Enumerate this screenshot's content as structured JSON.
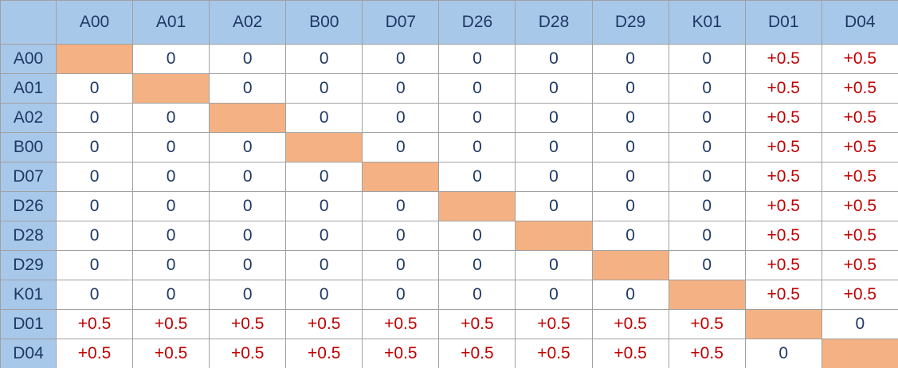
{
  "table": {
    "columns": [
      "A00",
      "A01",
      "A02",
      "B00",
      "D07",
      "D26",
      "D28",
      "D29",
      "K01",
      "D01",
      "D04"
    ],
    "rows": [
      {
        "label": "A00",
        "cells": [
          null,
          "0",
          "0",
          "0",
          "0",
          "0",
          "0",
          "0",
          "0",
          "+0.5",
          "+0.5"
        ]
      },
      {
        "label": "A01",
        "cells": [
          "0",
          null,
          "0",
          "0",
          "0",
          "0",
          "0",
          "0",
          "0",
          "+0.5",
          "+0.5"
        ]
      },
      {
        "label": "A02",
        "cells": [
          "0",
          "0",
          null,
          "0",
          "0",
          "0",
          "0",
          "0",
          "0",
          "+0.5",
          "+0.5"
        ]
      },
      {
        "label": "B00",
        "cells": [
          "0",
          "0",
          "0",
          null,
          "0",
          "0",
          "0",
          "0",
          "0",
          "+0.5",
          "+0.5"
        ]
      },
      {
        "label": "D07",
        "cells": [
          "0",
          "0",
          "0",
          "0",
          null,
          "0",
          "0",
          "0",
          "0",
          "+0.5",
          "+0.5"
        ]
      },
      {
        "label": "D26",
        "cells": [
          "0",
          "0",
          "0",
          "0",
          "0",
          null,
          "0",
          "0",
          "0",
          "+0.5",
          "+0.5"
        ]
      },
      {
        "label": "D28",
        "cells": [
          "0",
          "0",
          "0",
          "0",
          "0",
          "0",
          null,
          "0",
          "0",
          "+0.5",
          "+0.5"
        ]
      },
      {
        "label": "D29",
        "cells": [
          "0",
          "0",
          "0",
          "0",
          "0",
          "0",
          "0",
          null,
          "0",
          "+0.5",
          "+0.5"
        ]
      },
      {
        "label": "K01",
        "cells": [
          "0",
          "0",
          "0",
          "0",
          "0",
          "0",
          "0",
          "0",
          null,
          "+0.5",
          "+0.5"
        ]
      },
      {
        "label": "D01",
        "cells": [
          "+0.5",
          "+0.5",
          "+0.5",
          "+0.5",
          "+0.5",
          "+0.5",
          "+0.5",
          "+0.5",
          "+0.5",
          null,
          "0"
        ]
      },
      {
        "label": "D04",
        "cells": [
          "+0.5",
          "+0.5",
          "+0.5",
          "+0.5",
          "+0.5",
          "+0.5",
          "+0.5",
          "+0.5",
          "+0.5",
          "0",
          null
        ]
      }
    ]
  }
}
